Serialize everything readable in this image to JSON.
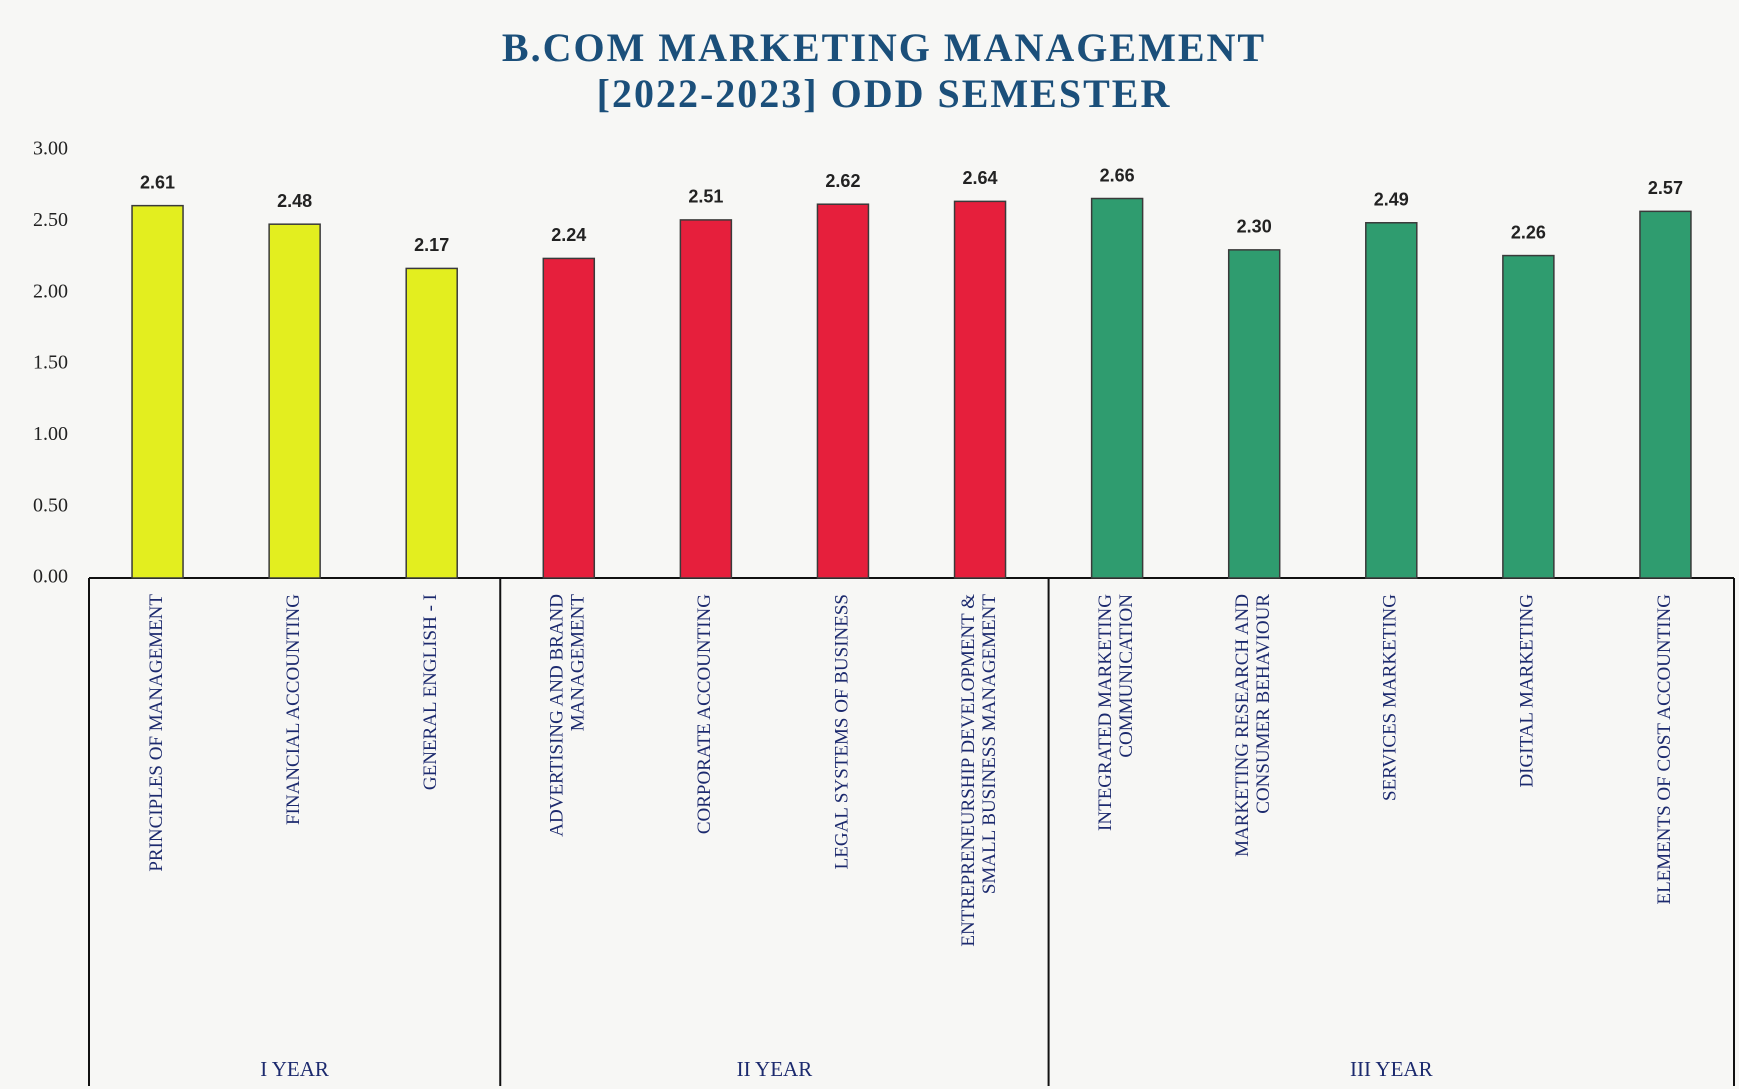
{
  "chart_data": {
    "type": "bar",
    "title": [
      "B.COM MARKETING MANAGEMENT",
      "[2022-2023] ODD SEMESTER"
    ],
    "ylim": [
      0,
      3
    ],
    "yticks": [
      {
        "value": 0,
        "label": "0.00"
      },
      {
        "value": 0.5,
        "label": "0.50"
      },
      {
        "value": 1,
        "label": "1.00"
      },
      {
        "value": 1.5,
        "label": "1.50"
      },
      {
        "value": 2,
        "label": "2.00"
      },
      {
        "value": 2.5,
        "label": "2.50"
      },
      {
        "value": 3,
        "label": "3.00"
      }
    ],
    "groups": [
      {
        "label": "I YEAR",
        "color": "#e3ee1f",
        "categories": [
          [
            "PRINCIPLES OF MANAGEMENT"
          ],
          [
            "FINANCIAL ACCOUNTING"
          ],
          [
            "GENERAL ENGLISH - I"
          ]
        ],
        "values": [
          2.61,
          2.48,
          2.17
        ],
        "value_labels": [
          "2.61",
          "2.48",
          "2.17"
        ]
      },
      {
        "label": "II YEAR",
        "color": "#e61f3c",
        "categories": [
          [
            "ADVERTISING AND BRAND",
            "MANAGEMENT"
          ],
          [
            "CORPORATE ACCOUNTING"
          ],
          [
            "LEGAL SYSTEMS OF BUSINESS"
          ],
          [
            "ENTREPRENEURSHIP DEVELOPMENT &",
            "SMALL BUSINESS MANAGEMENT"
          ]
        ],
        "values": [
          2.24,
          2.51,
          2.62,
          2.64
        ],
        "value_labels": [
          "2.24",
          "2.51",
          "2.62",
          "2.64"
        ]
      },
      {
        "label": "III YEAR",
        "color": "#2f9c6f",
        "categories": [
          [
            "INTEGRATED MARKETING",
            "COMMUNICATION"
          ],
          [
            "MARKETING RESEARCH AND",
            "CONSUMER BEHAVIOUR"
          ],
          [
            "SERVICES MARKETING"
          ],
          [
            "DIGITAL MARKETING"
          ],
          [
            "ELEMENTS OF COST ACCOUNTING"
          ]
        ],
        "values": [
          2.66,
          2.3,
          2.49,
          2.26,
          2.57
        ],
        "value_labels": [
          "2.66",
          "2.30",
          "2.49",
          "2.26",
          "2.57"
        ]
      }
    ]
  }
}
